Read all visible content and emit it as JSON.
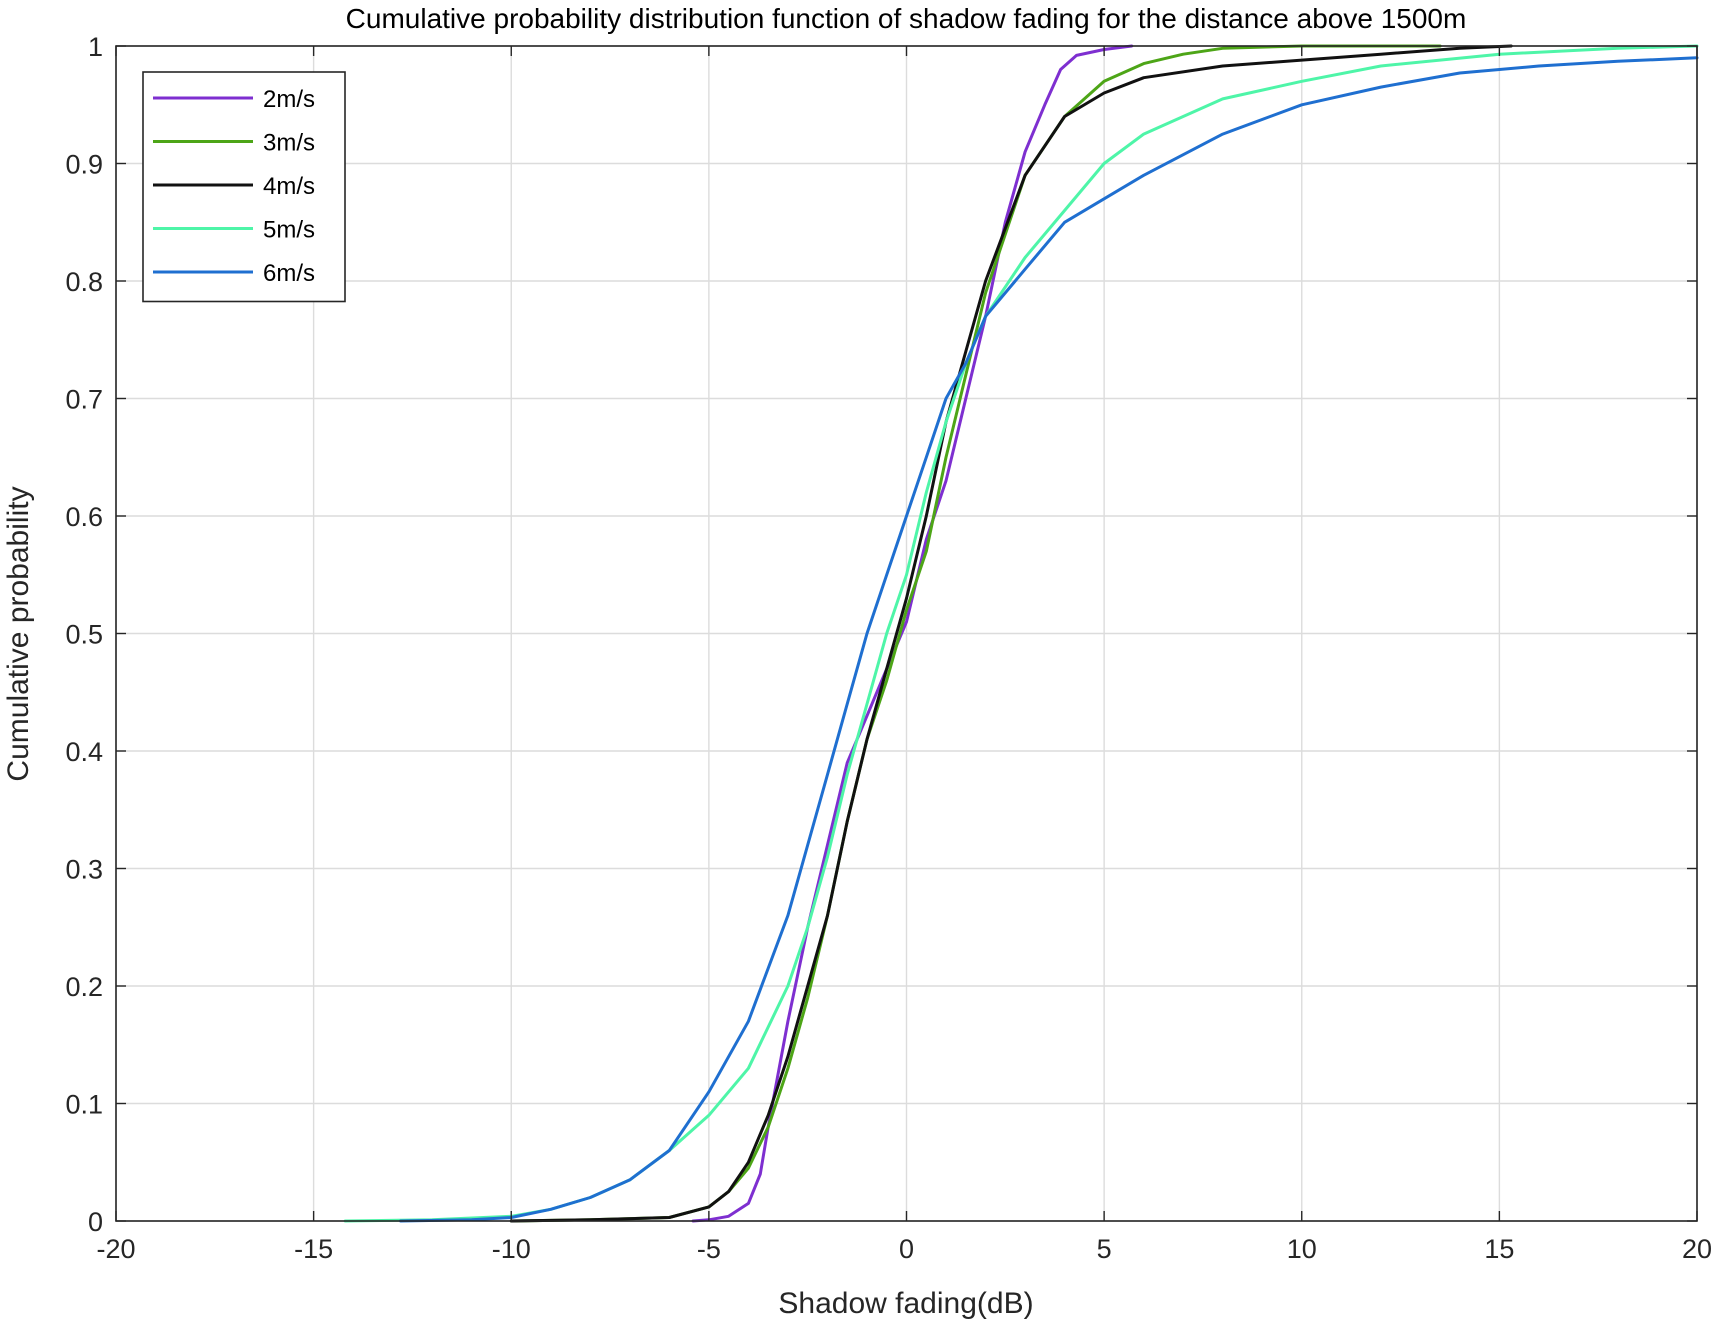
{
  "chart_data": {
    "type": "line",
    "title": "Cumulative probability distribution function of shadow fading for the distance above 1500m",
    "xlabel": "Shadow fading(dB)",
    "ylabel": "Cumulative probability",
    "xlim": [
      -20,
      20
    ],
    "ylim": [
      0,
      1
    ],
    "xticks": [
      -20,
      -15,
      -10,
      -5,
      0,
      5,
      10,
      15,
      20
    ],
    "yticks": [
      0,
      0.1,
      0.2,
      0.3,
      0.4,
      0.5,
      0.6,
      0.7,
      0.8,
      0.9,
      1
    ],
    "xtick_labels": [
      "-20",
      "-15",
      "-10",
      "-5",
      "0",
      "5",
      "10",
      "15",
      "20"
    ],
    "ytick_labels": [
      "0",
      "0.1",
      "0.2",
      "0.3",
      "0.4",
      "0.5",
      "0.6",
      "0.7",
      "0.8",
      "0.9",
      "1"
    ],
    "grid": true,
    "legend_position": "top-left",
    "series": [
      {
        "name": "2m/s",
        "color": "#7e2fd0",
        "points": [
          [
            -5.4,
            0
          ],
          [
            -5,
            0.001
          ],
          [
            -4.5,
            0.004
          ],
          [
            -4,
            0.015
          ],
          [
            -3.7,
            0.04
          ],
          [
            -3.5,
            0.08
          ],
          [
            -3,
            0.17
          ],
          [
            -2.5,
            0.25
          ],
          [
            -2,
            0.32
          ],
          [
            -1.5,
            0.39
          ],
          [
            -1,
            0.43
          ],
          [
            -0.5,
            0.47
          ],
          [
            0,
            0.51
          ],
          [
            0.5,
            0.58
          ],
          [
            1,
            0.63
          ],
          [
            1.5,
            0.7
          ],
          [
            2,
            0.77
          ],
          [
            2.5,
            0.85
          ],
          [
            3,
            0.91
          ],
          [
            3.5,
            0.95
          ],
          [
            3.9,
            0.98
          ],
          [
            4.3,
            0.992
          ],
          [
            5,
            0.997
          ],
          [
            5.7,
            1
          ]
        ]
      },
      {
        "name": "3m/s",
        "color": "#4da517",
        "points": [
          [
            -10,
            0
          ],
          [
            -8,
            0.001
          ],
          [
            -6,
            0.003
          ],
          [
            -5,
            0.012
          ],
          [
            -4.5,
            0.025
          ],
          [
            -4,
            0.045
          ],
          [
            -3.5,
            0.08
          ],
          [
            -3,
            0.13
          ],
          [
            -2.5,
            0.19
          ],
          [
            -2,
            0.26
          ],
          [
            -1.5,
            0.34
          ],
          [
            -1,
            0.41
          ],
          [
            -0.5,
            0.46
          ],
          [
            0,
            0.52
          ],
          [
            0.5,
            0.57
          ],
          [
            1,
            0.65
          ],
          [
            1.5,
            0.72
          ],
          [
            2,
            0.79
          ],
          [
            3,
            0.89
          ],
          [
            4,
            0.94
          ],
          [
            5,
            0.97
          ],
          [
            6,
            0.985
          ],
          [
            7,
            0.993
          ],
          [
            8,
            0.998
          ],
          [
            10,
            1
          ],
          [
            13.5,
            1
          ]
        ]
      },
      {
        "name": "4m/s",
        "color": "#111111",
        "points": [
          [
            -10,
            0
          ],
          [
            -8,
            0.001
          ],
          [
            -6,
            0.003
          ],
          [
            -5,
            0.012
          ],
          [
            -4.5,
            0.025
          ],
          [
            -4,
            0.05
          ],
          [
            -3.5,
            0.09
          ],
          [
            -3,
            0.14
          ],
          [
            -2.5,
            0.2
          ],
          [
            -2,
            0.26
          ],
          [
            -1.5,
            0.34
          ],
          [
            -1,
            0.41
          ],
          [
            -0.5,
            0.47
          ],
          [
            0,
            0.53
          ],
          [
            0.5,
            0.6
          ],
          [
            1,
            0.68
          ],
          [
            1.5,
            0.74
          ],
          [
            2,
            0.8
          ],
          [
            3,
            0.89
          ],
          [
            4,
            0.94
          ],
          [
            5,
            0.96
          ],
          [
            6,
            0.973
          ],
          [
            8,
            0.983
          ],
          [
            10,
            0.988
          ],
          [
            12,
            0.993
          ],
          [
            14,
            0.998
          ],
          [
            15.3,
            1
          ]
        ]
      },
      {
        "name": "5m/s",
        "color": "#4ef5a8",
        "points": [
          [
            -14.2,
            0
          ],
          [
            -12,
            0.001
          ],
          [
            -10,
            0.004
          ],
          [
            -9,
            0.01
          ],
          [
            -8,
            0.02
          ],
          [
            -7,
            0.035
          ],
          [
            -6,
            0.06
          ],
          [
            -5,
            0.09
          ],
          [
            -4,
            0.13
          ],
          [
            -3,
            0.2
          ],
          [
            -2.5,
            0.25
          ],
          [
            -2,
            0.31
          ],
          [
            -1.5,
            0.38
          ],
          [
            -1,
            0.44
          ],
          [
            -0.5,
            0.5
          ],
          [
            0,
            0.55
          ],
          [
            0.5,
            0.62
          ],
          [
            1,
            0.68
          ],
          [
            1.5,
            0.73
          ],
          [
            2,
            0.77
          ],
          [
            3,
            0.82
          ],
          [
            4,
            0.86
          ],
          [
            5,
            0.9
          ],
          [
            6,
            0.925
          ],
          [
            8,
            0.955
          ],
          [
            10,
            0.97
          ],
          [
            12,
            0.983
          ],
          [
            15,
            0.993
          ],
          [
            18,
            0.998
          ],
          [
            20,
            1
          ]
        ]
      },
      {
        "name": "6m/s",
        "color": "#1f6fd0",
        "points": [
          [
            -12.8,
            0
          ],
          [
            -11,
            0.001
          ],
          [
            -10,
            0.003
          ],
          [
            -9,
            0.01
          ],
          [
            -8,
            0.02
          ],
          [
            -7,
            0.035
          ],
          [
            -6,
            0.06
          ],
          [
            -5,
            0.11
          ],
          [
            -4,
            0.17
          ],
          [
            -3,
            0.26
          ],
          [
            -2.5,
            0.32
          ],
          [
            -2,
            0.38
          ],
          [
            -1.5,
            0.44
          ],
          [
            -1,
            0.5
          ],
          [
            -0.5,
            0.55
          ],
          [
            0,
            0.6
          ],
          [
            0.5,
            0.65
          ],
          [
            1,
            0.7
          ],
          [
            1.5,
            0.73
          ],
          [
            2,
            0.77
          ],
          [
            3,
            0.81
          ],
          [
            4,
            0.85
          ],
          [
            5,
            0.87
          ],
          [
            6,
            0.89
          ],
          [
            8,
            0.925
          ],
          [
            10,
            0.95
          ],
          [
            12,
            0.965
          ],
          [
            14,
            0.977
          ],
          [
            16,
            0.983
          ],
          [
            18,
            0.987
          ],
          [
            20,
            0.99
          ]
        ]
      }
    ]
  }
}
